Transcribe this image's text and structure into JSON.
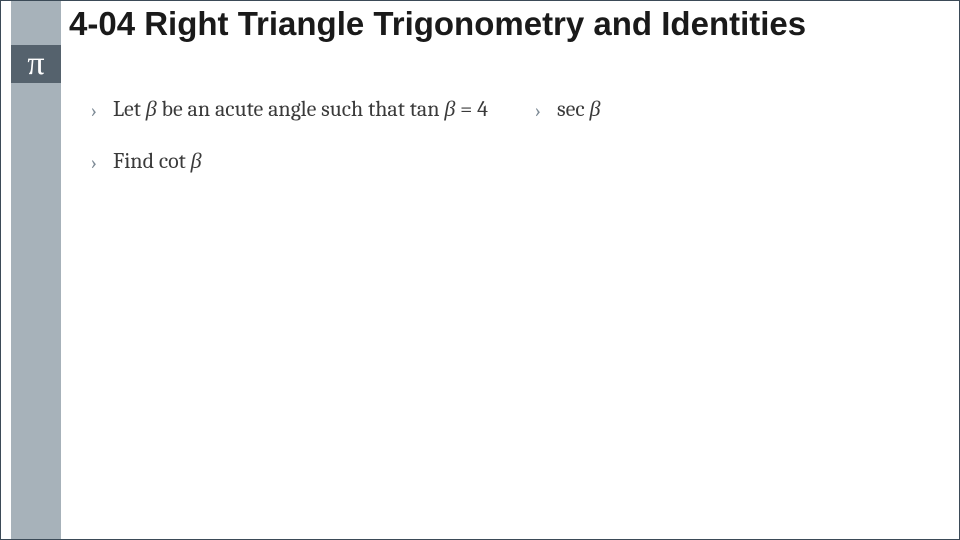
{
  "colors": {
    "slide_border": "#3b4a57",
    "rail_light": "#a7b2ba",
    "rail_dark": "#55626d",
    "rail_symbol_color": "#ffffff",
    "title_color": "#1a1a1a",
    "body_text_color": "#3a3a3a",
    "chevron_color": "#7d8a95",
    "background": "#ffffff"
  },
  "typography": {
    "title_font": "Arial",
    "title_weight": 700,
    "title_size_pt": 25,
    "body_font": "Cambria",
    "body_size_pt": 17
  },
  "rail": {
    "symbol": "π",
    "symbol_name": "pi-symbol"
  },
  "title": "4-04 Right Triangle Trigonometry and Identities",
  "content": {
    "left_column": {
      "items": [
        {
          "prefix": "Let ",
          "var1": "β",
          "mid1": " be an acute angle such that tan ",
          "var2": "β",
          "tail": " = 4"
        },
        {
          "prefix": "Find cot ",
          "var1": "β",
          "mid1": "",
          "var2": "",
          "tail": ""
        }
      ]
    },
    "right_column": {
      "items": [
        {
          "prefix": "sec ",
          "var1": "β",
          "mid1": "",
          "var2": "",
          "tail": ""
        }
      ]
    }
  },
  "chevron_glyph": "›"
}
